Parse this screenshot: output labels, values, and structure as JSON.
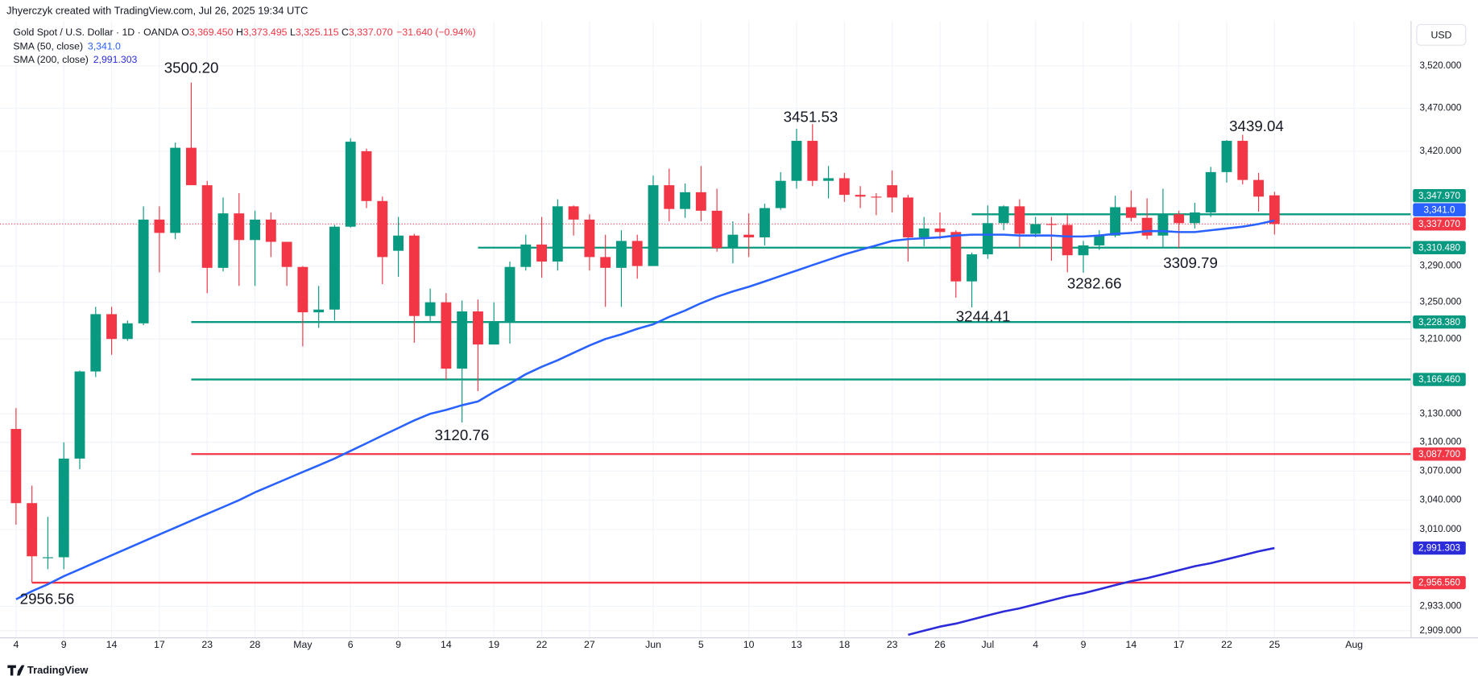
{
  "chart_data": {
    "type": "candlestick",
    "credit": "Jhyerczyk created with TradingView.com, Jul 26, 2025 19:34 UTC",
    "currency": "USD",
    "footer": "TradingView",
    "legend": {
      "symbol": "Gold Spot / U.S. Dollar · 1D · OANDA",
      "open": {
        "key": "O",
        "value": "3,369.450"
      },
      "high": {
        "key": "H",
        "value": "3,373.495"
      },
      "low": {
        "key": "L",
        "value": "3,325.115"
      },
      "close": {
        "key": "C",
        "value": "3,337.070"
      },
      "change": "−31.640 (−0.94%)"
    },
    "log_scale": true,
    "grid": true,
    "up_color": "#089981",
    "down_color": "#f23645",
    "ylim": [
      2902,
      3574
    ],
    "yticks": [
      {
        "value": 3520,
        "label": "3,520.000"
      },
      {
        "value": 3470,
        "label": "3,470.000"
      },
      {
        "value": 3420,
        "label": "3,420.000"
      },
      {
        "value": 3290,
        "label": "3,290.000"
      },
      {
        "value": 3250,
        "label": "3,250.000"
      },
      {
        "value": 3210,
        "label": "3,210.000"
      },
      {
        "value": 3130,
        "label": "3,130.000"
      },
      {
        "value": 3100,
        "label": "3,100.000"
      },
      {
        "value": 3070,
        "label": "3,070.000"
      },
      {
        "value": 3040,
        "label": "3,040.000"
      },
      {
        "value": 3010,
        "label": "3,010.000"
      },
      {
        "value": 2933,
        "label": "2,933.000"
      },
      {
        "value": 2909,
        "label": "2,909.000"
      }
    ],
    "categories": [
      "4",
      null,
      null,
      "9",
      null,
      null,
      "14",
      null,
      null,
      "17",
      null,
      null,
      "23",
      null,
      null,
      "28",
      null,
      null,
      "May",
      null,
      null,
      "6",
      null,
      null,
      "9",
      null,
      null,
      "14",
      null,
      null,
      "19",
      null,
      null,
      "22",
      null,
      null,
      "27",
      null,
      null,
      null,
      "Jun",
      null,
      null,
      "5",
      null,
      null,
      "10",
      null,
      null,
      "13",
      null,
      null,
      "18",
      null,
      null,
      "23",
      null,
      null,
      "26",
      null,
      null,
      "Jul",
      null,
      null,
      "4",
      null,
      null,
      "9",
      null,
      null,
      "14",
      null,
      null,
      "17",
      null,
      null,
      "22",
      null,
      null,
      "25",
      null,
      null,
      null,
      null,
      "Aug"
    ],
    "open": [
      3114,
      3037,
      2982,
      2982,
      3083,
      3175,
      3237,
      3210,
      3227,
      3342,
      3327,
      3424,
      3381,
      3288,
      3349,
      3319,
      3342,
      3317,
      3289,
      3239,
      3242,
      3334,
      3420,
      3363,
      3307,
      3324,
      3235,
      3250,
      3178,
      3240,
      3204,
      3229,
      3289,
      3314,
      3295,
      3357,
      3342,
      3300,
      3288,
      3318,
      3290,
      3381,
      3354,
      3373,
      3352,
      3310,
      3325,
      3322,
      3355,
      3386,
      3432,
      3386,
      3389,
      3370,
      3368,
      3381,
      3367,
      3322,
      3332,
      3328,
      3273,
      3303,
      3338,
      3357,
      3326,
      3337,
      3336,
      3302,
      3313,
      3324,
      3356,
      3344,
      3324,
      3348,
      3338,
      3350,
      3396,
      3432,
      3387,
      3369.45,
      null,
      null,
      null,
      null,
      null
    ],
    "high": [
      3136,
      3055,
      3023,
      3100,
      3176,
      3245,
      3245,
      3230,
      3357,
      3357,
      3430,
      3500.2,
      3386,
      3367,
      3372,
      3352,
      3350,
      3317,
      3290,
      3268,
      3336,
      3435,
      3423,
      3368,
      3345,
      3326,
      3265,
      3260,
      3252,
      3253,
      3250,
      3295,
      3325,
      3345,
      3365,
      3358,
      3348,
      3325,
      3330,
      3325,
      3392,
      3400,
      3383,
      3403,
      3377,
      3340,
      3349,
      3360,
      3396,
      3446,
      3451.53,
      3403,
      3395,
      3380,
      3372,
      3398,
      3370,
      3345,
      3350,
      3330,
      3305,
      3358,
      3358,
      3365,
      3345,
      3345,
      3347,
      3318,
      3330,
      3369,
      3375,
      3366,
      3377,
      3352,
      3361,
      3402,
      3433,
      3439.04,
      3395,
      3373.495,
      null,
      null,
      null,
      null,
      null
    ],
    "low": [
      3015,
      2956.56,
      2970,
      2970,
      3072,
      3169,
      3193,
      3208,
      3225,
      3283,
      3320,
      3385,
      3260,
      3284,
      3268,
      3268,
      3300,
      3268,
      3202,
      3222,
      3230,
      3333,
      3355,
      3270,
      3278,
      3206,
      3228,
      3166,
      3120.76,
      3154,
      3204,
      3205,
      3285,
      3277,
      3285,
      3324,
      3285,
      3245,
      3245,
      3276,
      3290,
      3340,
      3344,
      3340,
      3306,
      3293,
      3300,
      3313,
      3353,
      3377,
      3380,
      3366,
      3362,
      3355,
      3347,
      3350,
      3295,
      3312,
      3320,
      3255,
      3244.41,
      3298,
      3330,
      3311,
      3322,
      3296,
      3283,
      3282.66,
      3308,
      3322,
      3340,
      3320,
      3310,
      3309.79,
      3332,
      3345,
      3384,
      3382,
      3351,
      3325.115,
      null,
      null,
      null,
      null,
      null
    ],
    "close": [
      3037,
      2983,
      2982,
      3083,
      3175,
      3237,
      3210,
      3227,
      3342,
      3327,
      3424,
      3381,
      3288,
      3349,
      3319,
      3342,
      3317,
      3289,
      3239,
      3242,
      3334,
      3431,
      3363,
      3300,
      3324,
      3235,
      3250,
      3178,
      3240,
      3204,
      3229,
      3289,
      3314,
      3295,
      3357,
      3342,
      3300,
      3288,
      3318,
      3290,
      3381,
      3354,
      3373,
      3352,
      3310,
      3325,
      3322,
      3355,
      3386,
      3432,
      3386,
      3389,
      3370,
      3368,
      3367,
      3367,
      3322,
      3332,
      3328,
      3273,
      3303,
      3338,
      3357,
      3326,
      3337,
      3336,
      3302,
      3313,
      3324,
      3356,
      3344,
      3324,
      3348,
      3338,
      3350,
      3396,
      3432,
      3387,
      3368,
      3337.07,
      null,
      null,
      null,
      null,
      null
    ],
    "series": [
      {
        "name": "SMA (50, close)",
        "color": "#2962ff",
        "value_label": "3,341.0",
        "values": [
          2940,
          2948,
          2955,
          2963,
          2970,
          2977,
          2984,
          2991,
          2998,
          3005,
          3012,
          3019,
          3026,
          3033,
          3040,
          3048,
          3055,
          3062,
          3069,
          3076,
          3083,
          3091,
          3099,
          3107,
          3115,
          3123,
          3130,
          3134,
          3139,
          3143,
          3153,
          3162,
          3172,
          3180,
          3187,
          3195,
          3203,
          3210,
          3215,
          3221,
          3226,
          3234,
          3241,
          3249,
          3256,
          3262,
          3267,
          3273,
          3279,
          3285,
          3291,
          3297,
          3303,
          3308,
          3313,
          3318,
          3320,
          3321,
          3322,
          3324,
          3325,
          3325,
          3325,
          3324,
          3324,
          3324,
          3323,
          3323,
          3324,
          3326,
          3327,
          3329,
          3329,
          3328,
          3328,
          3330,
          3332,
          3334,
          3337,
          3341.0,
          null,
          null,
          null,
          null,
          null
        ]
      },
      {
        "name": "SMA (200, close)",
        "color": "#2b2bd9",
        "value_label": "2,991.303",
        "values": [
          null,
          null,
          null,
          null,
          null,
          null,
          null,
          null,
          null,
          null,
          null,
          null,
          null,
          null,
          null,
          null,
          null,
          null,
          null,
          null,
          null,
          null,
          null,
          null,
          null,
          null,
          null,
          null,
          null,
          null,
          null,
          null,
          null,
          null,
          null,
          null,
          null,
          null,
          null,
          null,
          null,
          null,
          null,
          null,
          null,
          null,
          null,
          null,
          null,
          null,
          null,
          null,
          null,
          null,
          null,
          null,
          2905,
          2909,
          2913,
          2916,
          2920,
          2924,
          2928,
          2931,
          2935,
          2939,
          2943,
          2946,
          2950,
          2954,
          2958,
          2961,
          2965,
          2969,
          2973,
          2976,
          2980,
          2984,
          2988,
          2991.303,
          null,
          null,
          null,
          null,
          null
        ]
      }
    ],
    "levels": [
      {
        "value": 3347.97,
        "label": "3,347.970",
        "color": "#089981"
      },
      {
        "value": 3310.48,
        "label": "3,310.480",
        "color": "#089981"
      },
      {
        "value": 3228.38,
        "label": "3,228.380",
        "color": "#089981"
      },
      {
        "value": 3166.46,
        "label": "3,166.460",
        "color": "#089981"
      },
      {
        "value": 3087.7,
        "label": "3,087.700",
        "color": "#f23645"
      },
      {
        "value": 2956.56,
        "label": "2,956.560",
        "color": "#f23645"
      }
    ],
    "annotations": [
      "3500.20",
      "3451.53",
      "3439.04",
      "3120.76",
      "3244.41",
      "3282.66",
      "3309.79",
      "2956.56"
    ]
  }
}
